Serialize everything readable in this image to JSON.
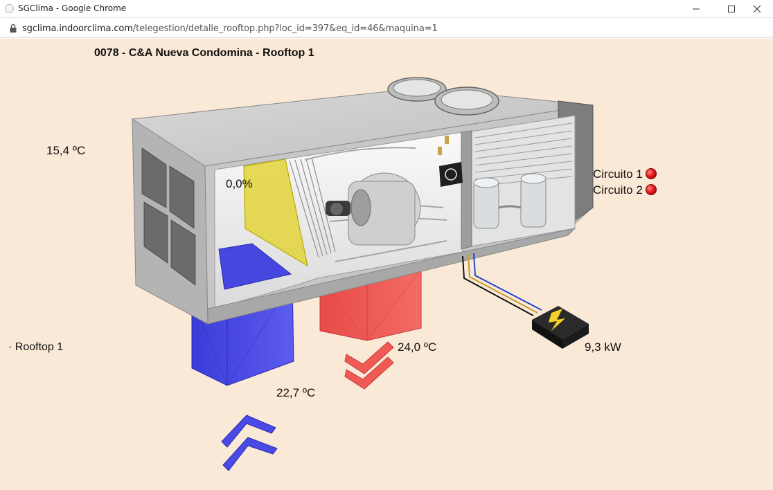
{
  "window": {
    "title": "SGClima - Google Chrome",
    "url_host": "sgclima.indoorclima.com",
    "url_path": "/telegestion/detalle_rooftop.php?loc_id=397&eq_id=46&maquina=1"
  },
  "page": {
    "title": "0078 - C&A Nueva Condomina - Rooftop 1",
    "outdoor_temp": "15,4 ºC",
    "damper_opening": "0,0%",
    "circuit1_label": "Circuito 1",
    "circuit2_label": "Circuito 2",
    "power": "9,3 kW",
    "return_temp": "24,0 ºC",
    "supply_temp": "22,7 ºC",
    "unit_name": "· Rooftop 1"
  },
  "colors": {
    "background": "#fae9d6",
    "supply_duct": "#4a4ae6",
    "return_duct": "#ef5a55",
    "damper": "#e2d43a",
    "alarm_led": "#e31b1b"
  },
  "icons": [
    "lock-icon",
    "minimize-icon",
    "maximize-icon",
    "close-icon",
    "alarm-led-icon"
  ]
}
